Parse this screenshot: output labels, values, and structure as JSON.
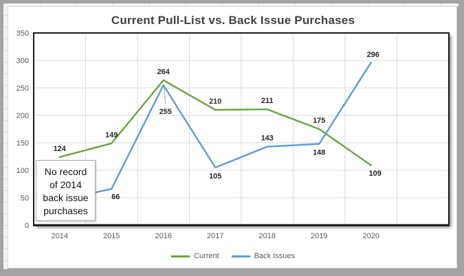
{
  "chart_data": {
    "type": "line",
    "title": "Current Pull-List vs. Back Issue Purchases",
    "categories": [
      "2014",
      "2015",
      "2016",
      "2017",
      "2018",
      "2019",
      "2020"
    ],
    "series": [
      {
        "name": "Current",
        "color": "#68a53c",
        "values": [
          124,
          149,
          264,
          210,
          211,
          175,
          109
        ],
        "label_positions": [
          "above",
          "above",
          "above",
          "above",
          "above",
          "above",
          "below-right"
        ]
      },
      {
        "name": "Back Issues",
        "color": "#5b9bd5",
        "values": [
          null,
          66,
          255,
          105,
          143,
          148,
          296
        ],
        "label_positions": [
          null,
          "below-right",
          "leader-below",
          "below",
          "above",
          "below",
          "above-right"
        ],
        "leadin_value": 46
      }
    ],
    "xlabel": "",
    "ylabel": "",
    "ylim": [
      0,
      350
    ],
    "ytick": 50,
    "grid": true,
    "legend_position": "bottom",
    "annotation": {
      "lines": [
        "No record",
        "of 2014",
        "back issue",
        "purchases"
      ]
    }
  },
  "colors": {
    "gridline": "#d9d9d9",
    "plot_border": "#1a1a1a",
    "axis_text": "#595959",
    "data_label_text": "#262626",
    "title_text": "#404040",
    "frame": "#a3a3a3",
    "leader_line": "#999999"
  }
}
